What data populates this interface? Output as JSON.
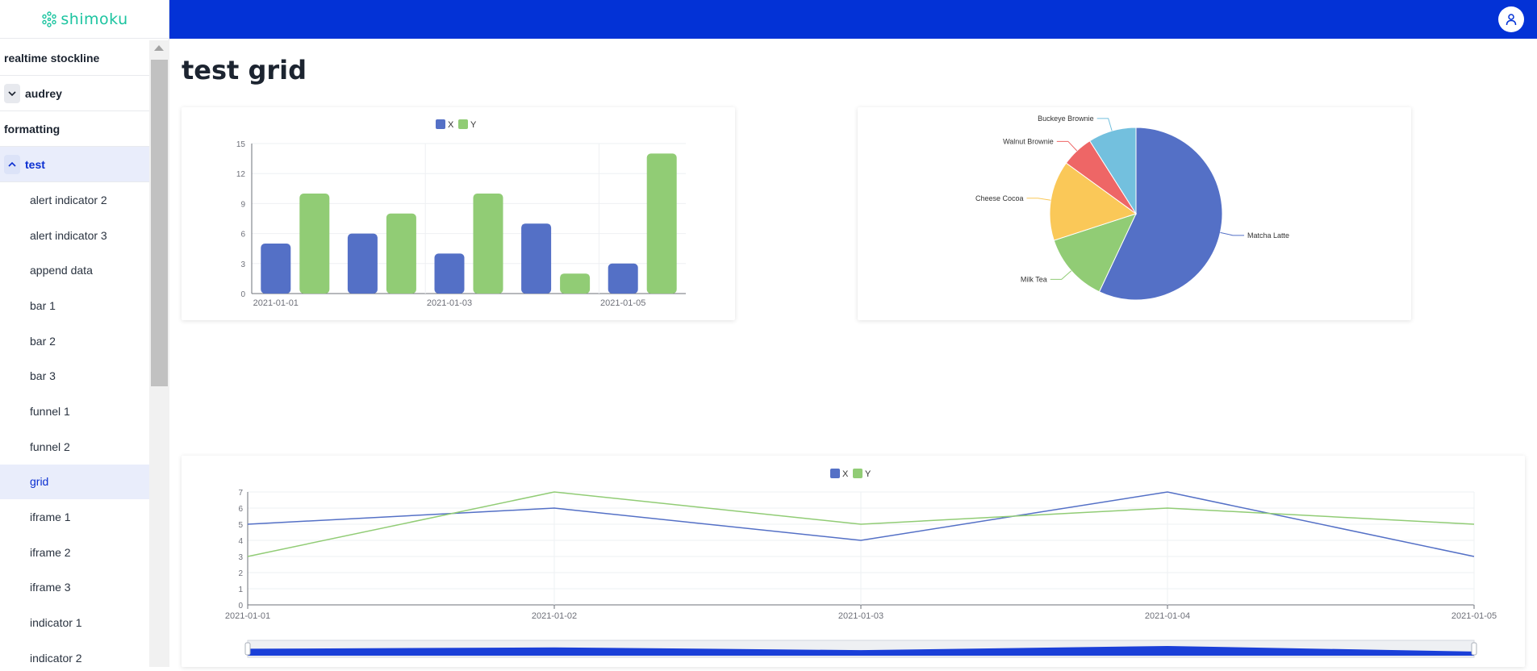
{
  "app": {
    "logo_text": "shimoku",
    "page_title": "test grid"
  },
  "colors": {
    "topbar": "#0332d6",
    "accent": "#0b2fd1",
    "series_x": "#5470c6",
    "series_y": "#91cc75",
    "logo": "#1cc4a0"
  },
  "sidebar": {
    "items": [
      {
        "label": "realtime stockline",
        "type": "top"
      },
      {
        "label": "audrey",
        "type": "top",
        "chevron": "down"
      },
      {
        "label": "formatting",
        "type": "top"
      },
      {
        "label": "test",
        "type": "top",
        "chevron": "up",
        "active": true
      },
      {
        "label": "alert indicator 2",
        "type": "sub"
      },
      {
        "label": "alert indicator 3",
        "type": "sub"
      },
      {
        "label": "append data",
        "type": "sub"
      },
      {
        "label": "bar 1",
        "type": "sub"
      },
      {
        "label": "bar 2",
        "type": "sub"
      },
      {
        "label": "bar 3",
        "type": "sub"
      },
      {
        "label": "funnel 1",
        "type": "sub"
      },
      {
        "label": "funnel 2",
        "type": "sub"
      },
      {
        "label": "grid",
        "type": "sub",
        "active": true
      },
      {
        "label": "iframe 1",
        "type": "sub"
      },
      {
        "label": "iframe 2",
        "type": "sub"
      },
      {
        "label": "iframe 3",
        "type": "sub"
      },
      {
        "label": "indicator 1",
        "type": "sub"
      },
      {
        "label": "indicator 2",
        "type": "sub"
      }
    ]
  },
  "chart_data": [
    {
      "type": "bar",
      "legend": [
        "X",
        "Y"
      ],
      "categories": [
        "2021-01-01",
        "2021-01-02",
        "2021-01-03",
        "2021-01-04",
        "2021-01-05"
      ],
      "x_tick_labels": [
        "2021-01-01",
        "2021-01-03",
        "2021-01-05"
      ],
      "series": [
        {
          "name": "X",
          "values": [
            5,
            6,
            4,
            7,
            3
          ]
        },
        {
          "name": "Y",
          "values": [
            10,
            8,
            10,
            2,
            14
          ]
        }
      ],
      "ylim": [
        0,
        15
      ],
      "yticks": [
        0,
        3,
        6,
        9,
        12,
        15
      ],
      "grid": true
    },
    {
      "type": "pie",
      "slices": [
        {
          "label": "Matcha Latte",
          "value": 57,
          "color": "#5470c6"
        },
        {
          "label": "Milk Tea",
          "value": 13,
          "color": "#91cc75"
        },
        {
          "label": "Cheese Cocoa",
          "value": 15,
          "color": "#fac858"
        },
        {
          "label": "Walnut Brownie",
          "value": 6,
          "color": "#ee6666"
        },
        {
          "label": "Buckeye Brownie",
          "value": 9,
          "color": "#73c0de"
        }
      ]
    },
    {
      "type": "line",
      "legend": [
        "X",
        "Y"
      ],
      "x": [
        "2021-01-01",
        "2021-01-02",
        "2021-01-03",
        "2021-01-04",
        "2021-01-05"
      ],
      "series": [
        {
          "name": "X",
          "values": [
            5,
            6,
            4,
            7,
            3
          ]
        },
        {
          "name": "Y",
          "values": [
            3,
            7,
            5,
            6,
            5
          ]
        }
      ],
      "ylim": [
        0,
        7
      ],
      "yticks": [
        0,
        1,
        2,
        3,
        4,
        5,
        6,
        7
      ],
      "grid": true,
      "data_zoom": true
    }
  ]
}
